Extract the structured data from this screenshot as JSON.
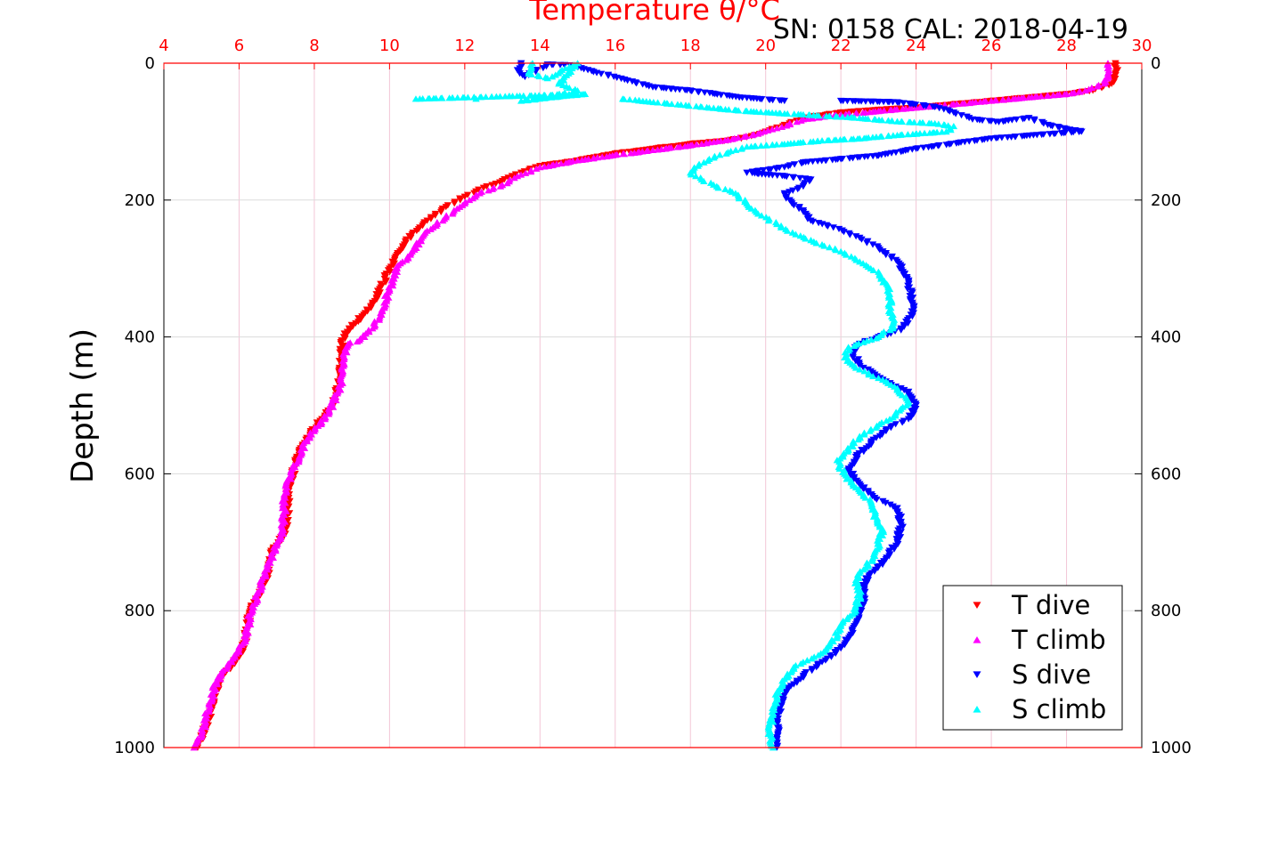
{
  "chart_data": {
    "type": "scatter",
    "title": "Temperature θ/°C",
    "title_color": "#ff0000",
    "subtitle": "SN: 0158  CAL: 2018-04-19",
    "ylabel": "Depth (m)",
    "xlim": [
      4,
      30
    ],
    "ylim": [
      0,
      1000
    ],
    "y_inverted": true,
    "x_axis_position": "top",
    "x_axis_color": "#ff0000",
    "x_ticks": [
      "4",
      "6",
      "8",
      "10",
      "12",
      "14",
      "16",
      "18",
      "20",
      "22",
      "24",
      "26",
      "28",
      "30"
    ],
    "y_ticks": [
      "0",
      "200",
      "400",
      "600",
      "800",
      "1000"
    ],
    "grid": true,
    "legend_position": "bottom-right",
    "series": [
      {
        "name": "T dive",
        "color": "#ff0000",
        "marker": "triangle-down",
        "points": [
          [
            29.3,
            0
          ],
          [
            29.3,
            15
          ],
          [
            29.2,
            30
          ],
          [
            28.7,
            40
          ],
          [
            28.0,
            45
          ],
          [
            27.0,
            50
          ],
          [
            26.0,
            55
          ],
          [
            25.0,
            60
          ],
          [
            24.0,
            65
          ],
          [
            23.0,
            68
          ],
          [
            22.0,
            72
          ],
          [
            21.0,
            80
          ],
          [
            20.5,
            90
          ],
          [
            20.0,
            100
          ],
          [
            19.5,
            108
          ],
          [
            19.0,
            113
          ],
          [
            18.0,
            118
          ],
          [
            17.0,
            125
          ],
          [
            16.0,
            132
          ],
          [
            15.0,
            142
          ],
          [
            14.0,
            150
          ],
          [
            13.5,
            160
          ],
          [
            13.0,
            172
          ],
          [
            12.5,
            182
          ],
          [
            12.0,
            195
          ],
          [
            11.5,
            210
          ],
          [
            11.0,
            230
          ],
          [
            10.6,
            250
          ],
          [
            10.2,
            280
          ],
          [
            10.0,
            300
          ],
          [
            9.8,
            325
          ],
          [
            9.5,
            355
          ],
          [
            9.1,
            380
          ],
          [
            8.8,
            395
          ],
          [
            8.7,
            420
          ],
          [
            8.7,
            460
          ],
          [
            8.5,
            500
          ],
          [
            8.2,
            520
          ],
          [
            7.9,
            540
          ],
          [
            7.6,
            565
          ],
          [
            7.5,
            590
          ],
          [
            7.3,
            620
          ],
          [
            7.3,
            650
          ],
          [
            7.2,
            690
          ],
          [
            6.9,
            710
          ],
          [
            6.8,
            740
          ],
          [
            6.6,
            770
          ],
          [
            6.3,
            800
          ],
          [
            6.2,
            830
          ],
          [
            6.1,
            860
          ],
          [
            5.8,
            880
          ],
          [
            5.5,
            900
          ],
          [
            5.3,
            930
          ],
          [
            5.2,
            960
          ],
          [
            5.0,
            985
          ],
          [
            4.9,
            1000
          ]
        ]
      },
      {
        "name": "T climb",
        "color": "#ff00ff",
        "marker": "triangle-up",
        "points": [
          [
            29.1,
            0
          ],
          [
            29.1,
            15
          ],
          [
            29.0,
            30
          ],
          [
            28.5,
            40
          ],
          [
            28.0,
            45
          ],
          [
            27.0,
            50
          ],
          [
            26.0,
            55
          ],
          [
            25.0,
            60
          ],
          [
            24.0,
            65
          ],
          [
            23.0,
            70
          ],
          [
            22.0,
            75
          ],
          [
            21.0,
            82
          ],
          [
            20.3,
            95
          ],
          [
            19.8,
            103
          ],
          [
            19.0,
            112
          ],
          [
            18.0,
            120
          ],
          [
            17.0,
            127
          ],
          [
            16.0,
            134
          ],
          [
            15.0,
            142
          ],
          [
            14.0,
            152
          ],
          [
            13.4,
            165
          ],
          [
            13.0,
            178
          ],
          [
            12.4,
            190
          ],
          [
            12.0,
            205
          ],
          [
            11.5,
            225
          ],
          [
            11.0,
            245
          ],
          [
            10.6,
            275
          ],
          [
            10.2,
            300
          ],
          [
            10.0,
            330
          ],
          [
            9.8,
            360
          ],
          [
            9.6,
            385
          ],
          [
            9.2,
            405
          ],
          [
            8.9,
            410
          ],
          [
            8.8,
            430
          ],
          [
            8.7,
            470
          ],
          [
            8.4,
            510
          ],
          [
            8.1,
            530
          ],
          [
            7.8,
            550
          ],
          [
            7.6,
            575
          ],
          [
            7.4,
            600
          ],
          [
            7.2,
            630
          ],
          [
            7.2,
            660
          ],
          [
            7.1,
            695
          ],
          [
            6.9,
            715
          ],
          [
            6.7,
            745
          ],
          [
            6.5,
            775
          ],
          [
            6.3,
            805
          ],
          [
            6.2,
            835
          ],
          [
            6.0,
            860
          ],
          [
            5.7,
            880
          ],
          [
            5.4,
            905
          ],
          [
            5.2,
            935
          ],
          [
            5.1,
            965
          ],
          [
            4.9,
            990
          ],
          [
            4.8,
            1000
          ]
        ]
      },
      {
        "name": "S dive",
        "color": "#0000ff",
        "marker": "triangle-down",
        "points": [
          [
            13.5,
            0
          ],
          [
            13.4,
            10
          ],
          [
            13.6,
            20
          ],
          [
            14.2,
            2
          ],
          [
            14.8,
            3
          ],
          [
            17.0,
            35
          ],
          [
            18.0,
            40
          ],
          [
            19.3,
            50
          ],
          [
            20.5,
            55
          ],
          [
            22.0,
            55
          ],
          [
            23.5,
            57
          ],
          [
            24.5,
            64
          ],
          [
            25.0,
            72
          ],
          [
            25.5,
            82
          ],
          [
            26.2,
            86
          ],
          [
            27.0,
            80
          ],
          [
            27.5,
            90
          ],
          [
            28.4,
            100
          ],
          [
            26.0,
            110
          ],
          [
            24.0,
            125
          ],
          [
            23.0,
            135
          ],
          [
            22.0,
            140
          ],
          [
            21.0,
            145
          ],
          [
            20.5,
            152
          ],
          [
            19.5,
            160
          ],
          [
            20.5,
            165
          ],
          [
            21.2,
            170
          ],
          [
            21.0,
            180
          ],
          [
            20.5,
            190
          ],
          [
            20.7,
            205
          ],
          [
            21.0,
            215
          ],
          [
            21.2,
            230
          ],
          [
            21.8,
            240
          ],
          [
            22.5,
            255
          ],
          [
            23.0,
            270
          ],
          [
            23.5,
            290
          ],
          [
            23.8,
            320
          ],
          [
            23.9,
            350
          ],
          [
            23.9,
            370
          ],
          [
            23.6,
            390
          ],
          [
            23.0,
            400
          ],
          [
            22.5,
            410
          ],
          [
            22.3,
            425
          ],
          [
            22.6,
            445
          ],
          [
            23.2,
            465
          ],
          [
            23.8,
            480
          ],
          [
            24.0,
            500
          ],
          [
            23.8,
            520
          ],
          [
            23.2,
            535
          ],
          [
            22.8,
            555
          ],
          [
            22.4,
            575
          ],
          [
            22.2,
            595
          ],
          [
            22.5,
            615
          ],
          [
            22.9,
            635
          ],
          [
            23.5,
            650
          ],
          [
            23.6,
            675
          ],
          [
            23.5,
            700
          ],
          [
            23.2,
            725
          ],
          [
            22.8,
            745
          ],
          [
            22.6,
            765
          ],
          [
            22.6,
            785
          ],
          [
            22.5,
            805
          ],
          [
            22.3,
            830
          ],
          [
            22.0,
            855
          ],
          [
            21.5,
            875
          ],
          [
            21.0,
            895
          ],
          [
            20.6,
            915
          ],
          [
            20.4,
            935
          ],
          [
            20.3,
            960
          ],
          [
            20.3,
            985
          ],
          [
            20.3,
            1000
          ]
        ]
      },
      {
        "name": "S climb",
        "color": "#00ffff",
        "marker": "triangle-up",
        "points": [
          [
            13.8,
            0
          ],
          [
            13.7,
            15
          ],
          [
            14.2,
            22
          ],
          [
            15.0,
            0
          ],
          [
            14.5,
            30
          ],
          [
            15.0,
            40
          ],
          [
            13.5,
            55
          ],
          [
            14.3,
            50
          ],
          [
            15.2,
            45
          ],
          [
            10.7,
            52
          ],
          [
            12.3,
            52
          ],
          [
            16.2,
            52
          ],
          [
            18.5,
            65
          ],
          [
            19.5,
            70
          ],
          [
            21.0,
            75
          ],
          [
            22.5,
            80
          ],
          [
            23.5,
            85
          ],
          [
            24.5,
            88
          ],
          [
            25.0,
            92
          ],
          [
            24.8,
            100
          ],
          [
            23.5,
            105
          ],
          [
            22.5,
            110
          ],
          [
            21.5,
            113
          ],
          [
            20.5,
            118
          ],
          [
            19.5,
            122
          ],
          [
            19.0,
            130
          ],
          [
            18.5,
            140
          ],
          [
            18.2,
            150
          ],
          [
            18.0,
            160
          ],
          [
            18.3,
            170
          ],
          [
            18.7,
            180
          ],
          [
            19.2,
            190
          ],
          [
            19.5,
            205
          ],
          [
            19.8,
            220
          ],
          [
            20.3,
            235
          ],
          [
            20.8,
            250
          ],
          [
            21.5,
            265
          ],
          [
            22.0,
            275
          ],
          [
            22.5,
            290
          ],
          [
            23.0,
            305
          ],
          [
            23.3,
            330
          ],
          [
            23.3,
            360
          ],
          [
            23.4,
            385
          ],
          [
            23.0,
            400
          ],
          [
            22.2,
            415
          ],
          [
            22.1,
            430
          ],
          [
            22.4,
            445
          ],
          [
            23.0,
            460
          ],
          [
            23.5,
            475
          ],
          [
            23.8,
            495
          ],
          [
            23.3,
            520
          ],
          [
            22.8,
            535
          ],
          [
            22.5,
            545
          ],
          [
            22.2,
            565
          ],
          [
            21.9,
            580
          ],
          [
            22.1,
            600
          ],
          [
            22.4,
            620
          ],
          [
            22.8,
            640
          ],
          [
            22.9,
            660
          ],
          [
            23.1,
            680
          ],
          [
            23.0,
            700
          ],
          [
            22.9,
            720
          ],
          [
            22.6,
            740
          ],
          [
            22.4,
            755
          ],
          [
            22.5,
            775
          ],
          [
            22.4,
            800
          ],
          [
            22.0,
            820
          ],
          [
            21.8,
            845
          ],
          [
            21.4,
            865
          ],
          [
            20.8,
            880
          ],
          [
            20.5,
            900
          ],
          [
            20.3,
            925
          ],
          [
            20.2,
            950
          ],
          [
            20.1,
            975
          ],
          [
            20.2,
            1000
          ]
        ]
      }
    ]
  }
}
